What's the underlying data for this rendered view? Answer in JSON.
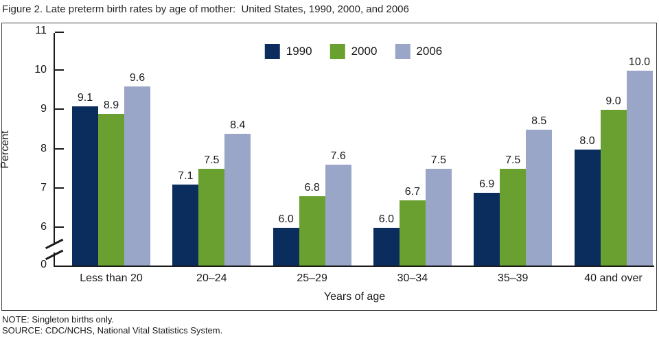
{
  "title": "Figure 2. Late preterm birth rates by age of mother:  United States, 1990, 2000, and 2006",
  "note": "NOTE: Singleton births only.",
  "source": "SOURCE: CDC/NCHS, National Vital Statistics System.",
  "chart_data": {
    "type": "bar",
    "title": "Late preterm birth rates by age of mother: United States, 1990, 2000, and 2006",
    "categories": [
      "Less than 20",
      "20–24",
      "25–29",
      "30–34",
      "35–39",
      "40 and over"
    ],
    "series": [
      {
        "name": "1990",
        "color": "#0b2d5e",
        "values": [
          9.1,
          7.1,
          6.0,
          6.0,
          6.9,
          8.0
        ]
      },
      {
        "name": "2000",
        "color": "#69a030",
        "values": [
          8.9,
          7.5,
          6.8,
          6.7,
          7.5,
          9.0
        ]
      },
      {
        "name": "2006",
        "color": "#9aa6c8",
        "values": [
          9.6,
          8.4,
          7.6,
          7.5,
          8.5,
          10.0
        ]
      }
    ],
    "xlabel": "Years of age",
    "ylabel": "Percent",
    "yticks": [
      0,
      6,
      7,
      8,
      9,
      10,
      11
    ],
    "ylim": [
      0,
      11
    ],
    "axis_break_between": [
      0,
      6
    ],
    "value_labels": true,
    "legend_position": "top-center",
    "grid": false
  }
}
